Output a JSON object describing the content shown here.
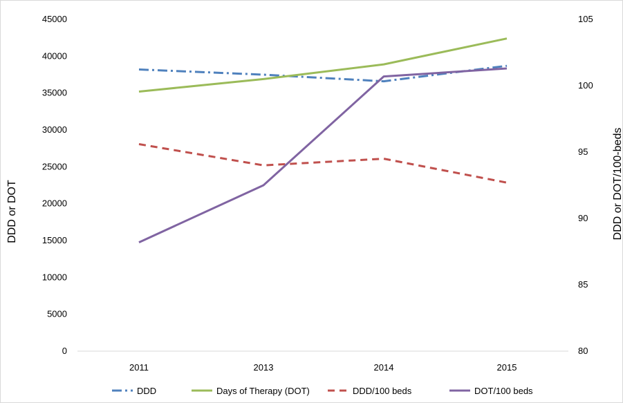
{
  "chart_data": {
    "type": "line",
    "title": "",
    "categories": [
      "2011",
      "2013",
      "2014",
      "2015"
    ],
    "y_left": {
      "label": "DDD or DOT",
      "range": [
        0,
        45000
      ],
      "step": 5000
    },
    "y_right": {
      "label": "DDD or DOT/100-beds",
      "range": [
        80,
        105
      ],
      "step": 5
    },
    "grid": false,
    "legend_position": "bottom",
    "series": [
      {
        "name": "DDD",
        "axis": "left",
        "color": "#4f81bd",
        "dash": "dashdot",
        "values": [
          38200,
          37500,
          36600,
          38700
        ]
      },
      {
        "name": "Days of Therapy (DOT)",
        "axis": "left",
        "color": "#9bbb59",
        "dash": "solid",
        "values": [
          35200,
          36900,
          38900,
          42400
        ]
      },
      {
        "name": "DDD/100 beds",
        "axis": "right",
        "color": "#c0504d",
        "dash": "dash",
        "values": [
          95.6,
          94.0,
          94.5,
          92.7
        ]
      },
      {
        "name": "DOT/100 beds",
        "axis": "right",
        "color": "#8064a2",
        "dash": "solid",
        "values": [
          88.2,
          92.5,
          100.7,
          101.3
        ]
      }
    ]
  }
}
